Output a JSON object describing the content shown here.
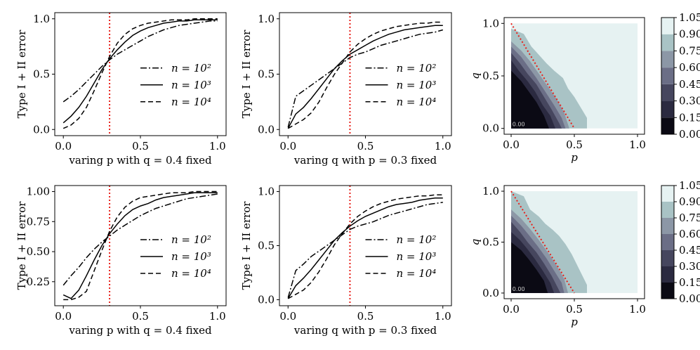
{
  "chart_data": [
    {
      "type": "line",
      "xlabel": "varing p with q = 0.4 fixed",
      "ylabel": "Type I + II error",
      "xlim": [
        0,
        1
      ],
      "ylim": [
        0,
        1
      ],
      "xticks": [
        "0.0",
        "0.5",
        "1.0"
      ],
      "yticks": [
        {
          "v": 0,
          "t": "0.0"
        },
        {
          "v": 0.5,
          "t": "0.5"
        },
        {
          "v": 1,
          "t": "1.0"
        }
      ],
      "vline": 0.3,
      "legend": [
        "n = 10²",
        "n = 10³",
        "n = 10⁴"
      ],
      "x": [
        0,
        0.05,
        0.1,
        0.15,
        0.2,
        0.25,
        0.3,
        0.35,
        0.4,
        0.45,
        0.5,
        0.55,
        0.6,
        0.65,
        0.7,
        0.75,
        0.8,
        0.85,
        0.9,
        0.95,
        1.0
      ],
      "series": [
        {
          "name": "n = 10²",
          "style": "dashdot",
          "values": [
            0.25,
            0.3,
            0.36,
            0.43,
            0.5,
            0.57,
            0.63,
            0.68,
            0.72,
            0.76,
            0.8,
            0.84,
            0.87,
            0.9,
            0.92,
            0.94,
            0.95,
            0.96,
            0.97,
            0.98,
            0.98
          ]
        },
        {
          "name": "n = 10³",
          "style": "solid",
          "values": [
            0.06,
            0.12,
            0.2,
            0.3,
            0.42,
            0.54,
            0.64,
            0.72,
            0.79,
            0.85,
            0.89,
            0.92,
            0.94,
            0.96,
            0.97,
            0.98,
            0.98,
            0.99,
            0.99,
            0.99,
            0.99
          ]
        },
        {
          "name": "n = 10⁴",
          "style": "dashed",
          "values": [
            0.01,
            0.04,
            0.1,
            0.2,
            0.35,
            0.51,
            0.66,
            0.78,
            0.86,
            0.91,
            0.94,
            0.96,
            0.97,
            0.98,
            0.99,
            0.99,
            0.99,
            1.0,
            1.0,
            1.0,
            1.0
          ]
        }
      ]
    },
    {
      "type": "line",
      "xlabel": "varing q with p = 0.3 fixed",
      "ylabel": "Type I + II error",
      "xlim": [
        0,
        1
      ],
      "ylim": [
        0,
        1
      ],
      "xticks": [
        "0.0",
        "0.5",
        "1.0"
      ],
      "yticks": [
        {
          "v": 0,
          "t": "0.0"
        },
        {
          "v": 0.5,
          "t": "0.5"
        },
        {
          "v": 1,
          "t": "1.0"
        }
      ],
      "vline": 0.4,
      "legend": [
        "n = 10²",
        "n = 10³",
        "n = 10⁴"
      ],
      "x": [
        0,
        0.05,
        0.1,
        0.15,
        0.2,
        0.25,
        0.3,
        0.35,
        0.4,
        0.45,
        0.5,
        0.55,
        0.6,
        0.65,
        0.7,
        0.75,
        0.8,
        0.85,
        0.9,
        0.95,
        1.0
      ],
      "series": [
        {
          "name": "n = 10²",
          "style": "dashdot",
          "values": [
            0.02,
            0.3,
            0.35,
            0.4,
            0.45,
            0.5,
            0.55,
            0.6,
            0.65,
            0.68,
            0.7,
            0.73,
            0.76,
            0.78,
            0.8,
            0.82,
            0.84,
            0.86,
            0.87,
            0.88,
            0.9
          ]
        },
        {
          "name": "n = 10³",
          "style": "solid",
          "values": [
            0.01,
            0.14,
            0.2,
            0.28,
            0.37,
            0.46,
            0.55,
            0.62,
            0.68,
            0.72,
            0.76,
            0.8,
            0.83,
            0.86,
            0.88,
            0.9,
            0.91,
            0.92,
            0.93,
            0.94,
            0.94
          ]
        },
        {
          "name": "n = 10⁴",
          "style": "dashed",
          "values": [
            0.01,
            0.05,
            0.09,
            0.15,
            0.25,
            0.38,
            0.5,
            0.6,
            0.7,
            0.77,
            0.82,
            0.86,
            0.89,
            0.91,
            0.93,
            0.94,
            0.95,
            0.96,
            0.96,
            0.97,
            0.97
          ]
        }
      ]
    },
    {
      "type": "heatmap",
      "xlabel": "p",
      "ylabel": "q",
      "xlim": [
        0,
        1
      ],
      "ylim": [
        0,
        1
      ],
      "xticks": [
        "0.0",
        "0.5",
        "1.0"
      ],
      "yticks": [
        {
          "v": 0,
          "t": "0.0"
        },
        {
          "v": 0.5,
          "t": "0.5"
        },
        {
          "v": 1,
          "t": "1.0"
        }
      ],
      "colorbar": [
        "0.00",
        "0.15",
        "0.30",
        "0.45",
        "0.60",
        "0.75",
        "0.90",
        "1.05"
      ],
      "inner_label": "0.00",
      "levels": [
        {
          "v": 0.0,
          "color": "#0b0a14",
          "boundary": [
            [
              0,
              0.55
            ],
            [
              0.08,
              0.45
            ],
            [
              0.14,
              0.35
            ],
            [
              0.2,
              0.25
            ],
            [
              0.26,
              0.12
            ],
            [
              0.3,
              0
            ]
          ]
        },
        {
          "v": 0.15,
          "color": "#2b2a40",
          "boundary": [
            [
              0,
              0.65
            ],
            [
              0.06,
              0.55
            ],
            [
              0.13,
              0.45
            ],
            [
              0.19,
              0.35
            ],
            [
              0.25,
              0.22
            ],
            [
              0.31,
              0.12
            ],
            [
              0.35,
              0
            ]
          ]
        },
        {
          "v": 0.3,
          "color": "#46465e",
          "boundary": [
            [
              0,
              0.72
            ],
            [
              0.07,
              0.62
            ],
            [
              0.13,
              0.52
            ],
            [
              0.2,
              0.42
            ],
            [
              0.26,
              0.3
            ],
            [
              0.32,
              0.18
            ],
            [
              0.38,
              0.05
            ],
            [
              0.4,
              0
            ]
          ]
        },
        {
          "v": 0.45,
          "color": "#6b6e86",
          "boundary": [
            [
              0,
              0.78
            ],
            [
              0.08,
              0.68
            ],
            [
              0.14,
              0.58
            ],
            [
              0.2,
              0.48
            ],
            [
              0.27,
              0.35
            ],
            [
              0.34,
              0.22
            ],
            [
              0.4,
              0.1
            ],
            [
              0.43,
              0
            ]
          ]
        },
        {
          "v": 0.6,
          "color": "#8c97a6",
          "boundary": [
            [
              0,
              0.83
            ],
            [
              0.08,
              0.74
            ],
            [
              0.15,
              0.64
            ],
            [
              0.22,
              0.52
            ],
            [
              0.29,
              0.4
            ],
            [
              0.36,
              0.28
            ],
            [
              0.42,
              0.15
            ],
            [
              0.46,
              0
            ]
          ]
        },
        {
          "v": 0.75,
          "color": "#a9c3c5",
          "boundary": [
            [
              0,
              0.95
            ],
            [
              0.1,
              0.9
            ],
            [
              0.16,
              0.78
            ],
            [
              0.22,
              0.7
            ],
            [
              0.28,
              0.62
            ],
            [
              0.34,
              0.55
            ],
            [
              0.41,
              0.48
            ],
            [
              0.45,
              0.38
            ],
            [
              0.5,
              0.3
            ],
            [
              0.55,
              0.2
            ],
            [
              0.6,
              0.1
            ],
            [
              0.6,
              0
            ]
          ]
        }
      ],
      "background_color": "#e6f2f2",
      "diag": [
        [
          0,
          1
        ],
        [
          0.5,
          0
        ]
      ]
    },
    {
      "type": "line",
      "xlabel": "varing p with q = 0.4 fixed",
      "ylabel": "Type I + II error",
      "xlim": [
        0,
        1
      ],
      "ylim": [
        0.1,
        1.0
      ],
      "xticks": [
        "0.0",
        "0.5",
        "1.0"
      ],
      "yticks": [
        {
          "v": 0.25,
          "t": "0.25"
        },
        {
          "v": 0.5,
          "t": "0.50"
        },
        {
          "v": 0.75,
          "t": "0.75"
        },
        {
          "v": 1.0,
          "t": "1.00"
        }
      ],
      "vline": 0.3,
      "legend": [
        "n = 10²",
        "n = 10³",
        "n = 10⁴"
      ],
      "x": [
        0,
        0.05,
        0.1,
        0.15,
        0.2,
        0.25,
        0.3,
        0.35,
        0.4,
        0.45,
        0.5,
        0.55,
        0.6,
        0.65,
        0.7,
        0.75,
        0.8,
        0.85,
        0.9,
        0.95,
        1.0
      ],
      "series": [
        {
          "name": "n = 10²",
          "style": "dashdot",
          "values": [
            0.22,
            0.3,
            0.37,
            0.45,
            0.52,
            0.58,
            0.63,
            0.68,
            0.72,
            0.76,
            0.8,
            0.83,
            0.86,
            0.88,
            0.9,
            0.92,
            0.94,
            0.95,
            0.96,
            0.97,
            0.98
          ]
        },
        {
          "name": "n = 10³",
          "style": "solid",
          "values": [
            0.14,
            0.11,
            0.18,
            0.3,
            0.43,
            0.55,
            0.65,
            0.73,
            0.8,
            0.85,
            0.88,
            0.9,
            0.93,
            0.95,
            0.96,
            0.97,
            0.98,
            0.99,
            0.99,
            0.99,
            0.99
          ]
        },
        {
          "name": "n = 10⁴",
          "style": "dashed",
          "values": [
            0.1,
            0.1,
            0.12,
            0.17,
            0.34,
            0.51,
            0.67,
            0.79,
            0.87,
            0.92,
            0.95,
            0.96,
            0.97,
            0.98,
            0.99,
            0.99,
            0.99,
            1.0,
            1.0,
            1.0,
            1.0
          ]
        }
      ]
    },
    {
      "type": "line",
      "xlabel": "varing q with p = 0.3 fixed",
      "ylabel": "Type I + II error",
      "xlim": [
        0,
        1
      ],
      "ylim": [
        0,
        1
      ],
      "xticks": [
        "0.0",
        "0.5",
        "1.0"
      ],
      "yticks": [
        {
          "v": 0,
          "t": "0.0"
        },
        {
          "v": 0.5,
          "t": "0.5"
        },
        {
          "v": 1,
          "t": "1.0"
        }
      ],
      "vline": 0.4,
      "legend": [
        "n = 10²",
        "n = 10³",
        "n = 10⁴"
      ],
      "x": [
        0,
        0.05,
        0.1,
        0.15,
        0.2,
        0.25,
        0.3,
        0.35,
        0.4,
        0.45,
        0.5,
        0.55,
        0.6,
        0.65,
        0.7,
        0.75,
        0.8,
        0.85,
        0.9,
        0.95,
        1.0
      ],
      "series": [
        {
          "name": "n = 10²",
          "style": "dashdot",
          "values": [
            0.02,
            0.27,
            0.33,
            0.4,
            0.45,
            0.5,
            0.55,
            0.6,
            0.65,
            0.68,
            0.7,
            0.72,
            0.75,
            0.78,
            0.8,
            0.82,
            0.84,
            0.86,
            0.88,
            0.89,
            0.9
          ]
        },
        {
          "name": "n = 10³",
          "style": "solid",
          "values": [
            0.01,
            0.13,
            0.2,
            0.28,
            0.37,
            0.46,
            0.55,
            0.62,
            0.68,
            0.73,
            0.77,
            0.8,
            0.83,
            0.86,
            0.88,
            0.89,
            0.9,
            0.92,
            0.93,
            0.94,
            0.94
          ]
        },
        {
          "name": "n = 10⁴",
          "style": "dashed",
          "values": [
            0.01,
            0.05,
            0.09,
            0.16,
            0.26,
            0.38,
            0.51,
            0.61,
            0.7,
            0.77,
            0.82,
            0.86,
            0.89,
            0.91,
            0.93,
            0.94,
            0.95,
            0.96,
            0.96,
            0.97,
            0.97
          ]
        }
      ]
    },
    {
      "type": "heatmap",
      "xlabel": "p",
      "ylabel": "q",
      "xlim": [
        0,
        1
      ],
      "ylim": [
        0,
        1
      ],
      "xticks": [
        "0.0",
        "0.5",
        "1.0"
      ],
      "yticks": [
        {
          "v": 0,
          "t": "0.0"
        },
        {
          "v": 0.5,
          "t": "0.5"
        },
        {
          "v": 1,
          "t": "1.0"
        }
      ],
      "colorbar": [
        "0.00",
        "0.15",
        "0.30",
        "0.45",
        "0.60",
        "0.75",
        "0.90",
        "1.05"
      ],
      "inner_label": "0.00",
      "levels": [
        {
          "v": 0.0,
          "color": "#0b0a14",
          "boundary": [
            [
              0,
              0.5
            ],
            [
              0.08,
              0.42
            ],
            [
              0.14,
              0.33
            ],
            [
              0.2,
              0.23
            ],
            [
              0.26,
              0.12
            ],
            [
              0.29,
              0
            ]
          ]
        },
        {
          "v": 0.15,
          "color": "#2b2a40",
          "boundary": [
            [
              0,
              0.6
            ],
            [
              0.07,
              0.52
            ],
            [
              0.13,
              0.43
            ],
            [
              0.19,
              0.33
            ],
            [
              0.25,
              0.22
            ],
            [
              0.31,
              0.1
            ],
            [
              0.34,
              0
            ]
          ]
        },
        {
          "v": 0.3,
          "color": "#46465e",
          "boundary": [
            [
              0,
              0.7
            ],
            [
              0.07,
              0.6
            ],
            [
              0.13,
              0.5
            ],
            [
              0.2,
              0.4
            ],
            [
              0.26,
              0.29
            ],
            [
              0.32,
              0.17
            ],
            [
              0.37,
              0.05
            ],
            [
              0.39,
              0
            ]
          ]
        },
        {
          "v": 0.45,
          "color": "#6b6e86",
          "boundary": [
            [
              0,
              0.76
            ],
            [
              0.08,
              0.66
            ],
            [
              0.14,
              0.57
            ],
            [
              0.21,
              0.46
            ],
            [
              0.28,
              0.34
            ],
            [
              0.34,
              0.22
            ],
            [
              0.4,
              0.1
            ],
            [
              0.42,
              0
            ]
          ]
        },
        {
          "v": 0.6,
          "color": "#8c97a6",
          "boundary": [
            [
              0,
              0.82
            ],
            [
              0.08,
              0.73
            ],
            [
              0.15,
              0.63
            ],
            [
              0.22,
              0.52
            ],
            [
              0.29,
              0.4
            ],
            [
              0.36,
              0.27
            ],
            [
              0.42,
              0.14
            ],
            [
              0.45,
              0
            ]
          ]
        },
        {
          "v": 0.75,
          "color": "#a9c3c5",
          "boundary": [
            [
              0,
              1.0
            ],
            [
              0.1,
              0.95
            ],
            [
              0.15,
              0.82
            ],
            [
              0.22,
              0.75
            ],
            [
              0.27,
              0.68
            ],
            [
              0.33,
              0.62
            ],
            [
              0.38,
              0.56
            ],
            [
              0.43,
              0.48
            ],
            [
              0.48,
              0.38
            ],
            [
              0.52,
              0.28
            ],
            [
              0.56,
              0.18
            ],
            [
              0.6,
              0.08
            ],
            [
              0.6,
              0
            ]
          ]
        }
      ],
      "background_color": "#e6f2f2",
      "diag": [
        [
          0,
          1
        ],
        [
          0.5,
          0
        ]
      ]
    }
  ]
}
